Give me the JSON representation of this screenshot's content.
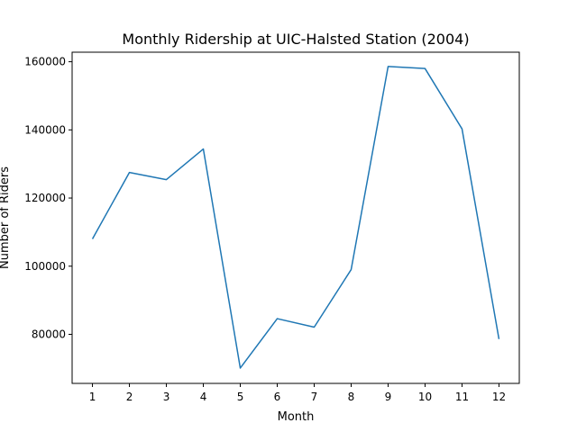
{
  "chart_data": {
    "type": "line",
    "title": "Monthly Ridership at UIC-Halsted Station (2004)",
    "xlabel": "Month",
    "ylabel": "Number of Riders",
    "x": [
      1,
      2,
      3,
      4,
      5,
      6,
      7,
      8,
      9,
      10,
      11,
      12
    ],
    "x_ticks": [
      "1",
      "2",
      "3",
      "4",
      "5",
      "6",
      "7",
      "8",
      "9",
      "10",
      "11",
      "12"
    ],
    "y_ticks": [
      "80000",
      "100000",
      "120000",
      "140000",
      "160000"
    ],
    "y_tick_values": [
      80000,
      100000,
      120000,
      140000,
      160000
    ],
    "xlim": [
      0.45,
      12.55
    ],
    "ylim": [
      65600,
      162800
    ],
    "grid": false,
    "legend": "none",
    "series": [
      {
        "values": [
          108000,
          127500,
          125400,
          134400,
          70100,
          84600,
          82100,
          99000,
          158600,
          158000,
          140300,
          78600
        ],
        "color": "#1f77b4"
      }
    ]
  }
}
